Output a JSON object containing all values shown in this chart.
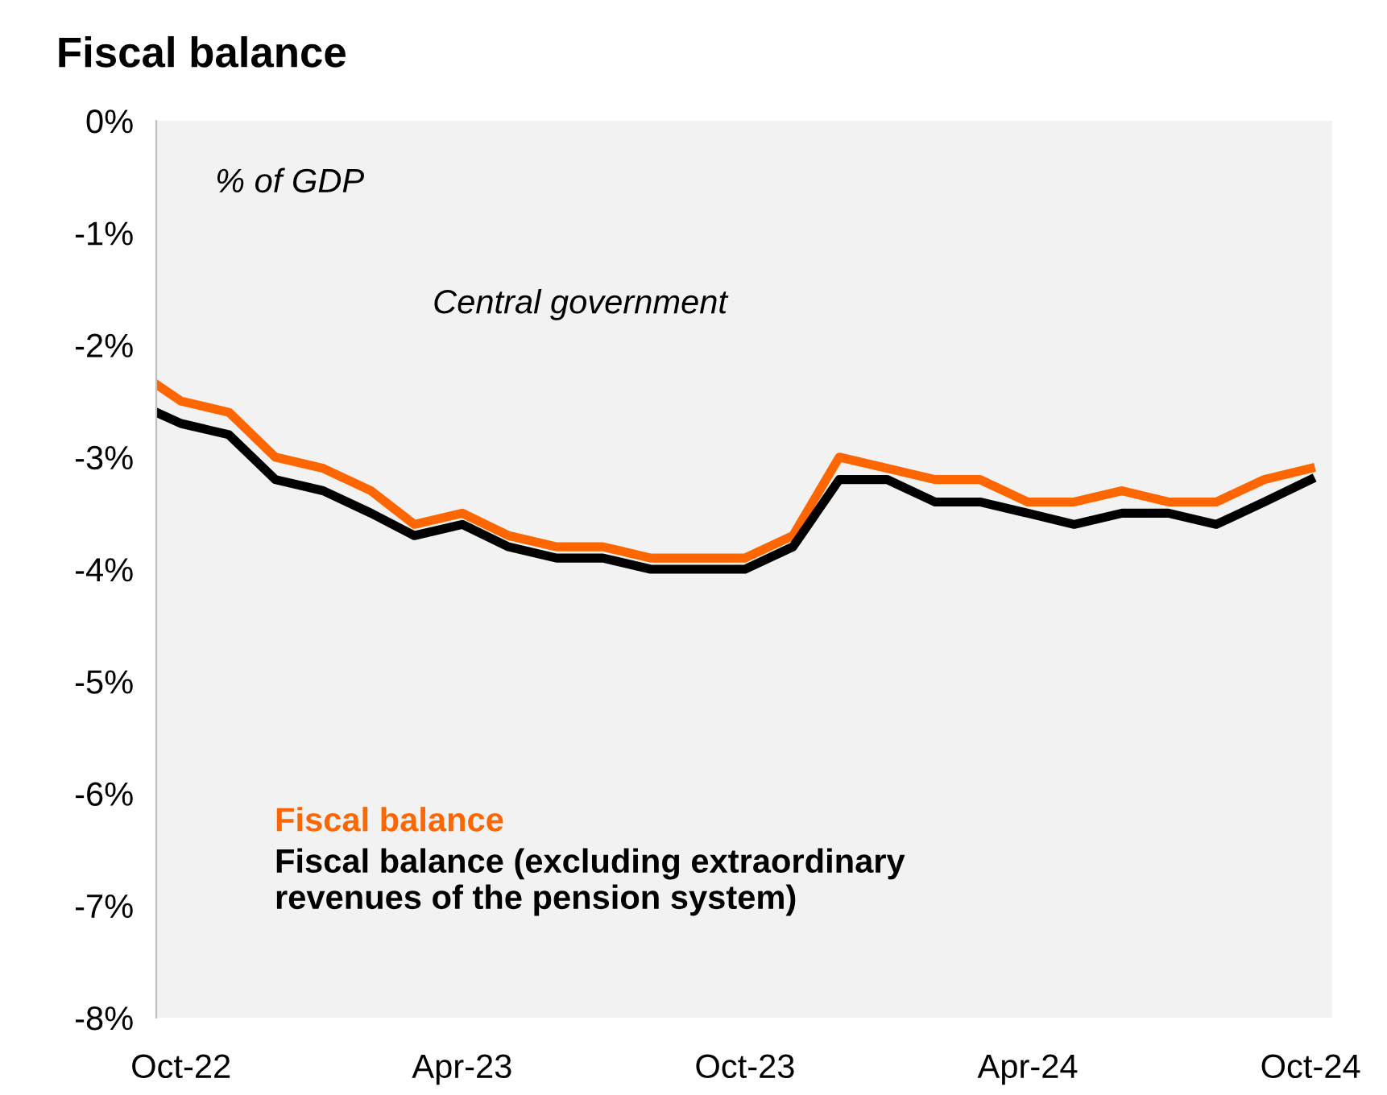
{
  "chart_data": {
    "type": "line",
    "title": "Fiscal balance",
    "annotations": [
      "% of GDP",
      "Central government"
    ],
    "x": [
      "2022-09-15",
      "2022-10",
      "2022-11",
      "2022-12",
      "2023-01",
      "2023-02",
      "2023-03",
      "2023-04",
      "2023-05",
      "2023-06",
      "2023-07",
      "2023-08",
      "2023-09",
      "2023-10",
      "2023-11",
      "2023-12",
      "2024-01",
      "2024-02",
      "2024-03",
      "2024-04",
      "2024-05",
      "2024-06",
      "2024-07",
      "2024-08",
      "2024-09",
      "2024-10"
    ],
    "series": [
      {
        "name": "Fiscal balance",
        "color": "#ff6600",
        "values": [
          -2.35,
          -2.5,
          -2.6,
          -3.0,
          -3.1,
          -3.3,
          -3.6,
          -3.5,
          -3.7,
          -3.8,
          -3.8,
          -3.9,
          -3.9,
          -3.9,
          -3.7,
          -3.0,
          -3.1,
          -3.2,
          -3.2,
          -3.4,
          -3.4,
          -3.3,
          -3.4,
          -3.4,
          -3.2,
          -3.1
        ]
      },
      {
        "name": "Fiscal balance (excluding extraordinary\nrevenues of the pension system)",
        "color": "#000000",
        "values": [
          -2.6,
          -2.7,
          -2.8,
          -3.2,
          -3.3,
          -3.5,
          -3.7,
          -3.6,
          -3.8,
          -3.9,
          -3.9,
          -4.0,
          -4.0,
          -4.0,
          -3.8,
          -3.2,
          -3.2,
          -3.4,
          -3.4,
          -3.5,
          -3.6,
          -3.5,
          -3.5,
          -3.6,
          -3.4,
          -3.2
        ]
      }
    ],
    "xlim": [
      "2022-09-15",
      "2024-10-15"
    ],
    "xticks": [
      {
        "value": "2022-10",
        "label": "Oct-22"
      },
      {
        "value": "2023-04",
        "label": "Apr-23"
      },
      {
        "value": "2023-10",
        "label": "Oct-23"
      },
      {
        "value": "2024-04",
        "label": "Apr-24"
      },
      {
        "value": "2024-10",
        "label": "Oct-24"
      }
    ],
    "ylim": [
      -8,
      0
    ],
    "yticks": [
      {
        "value": -8,
        "label": "-8%"
      },
      {
        "value": -7,
        "label": "-7%"
      },
      {
        "value": -6,
        "label": "-6%"
      },
      {
        "value": -5,
        "label": "-5%"
      },
      {
        "value": -4,
        "label": "-4%"
      },
      {
        "value": -3,
        "label": "-3%"
      },
      {
        "value": -2,
        "label": "-2%"
      },
      {
        "value": -1,
        "label": "-1%"
      },
      {
        "value": 0,
        "label": "0%"
      }
    ],
    "grid": false,
    "legend": "bottom left",
    "marker": "none",
    "line_style": "solid"
  }
}
